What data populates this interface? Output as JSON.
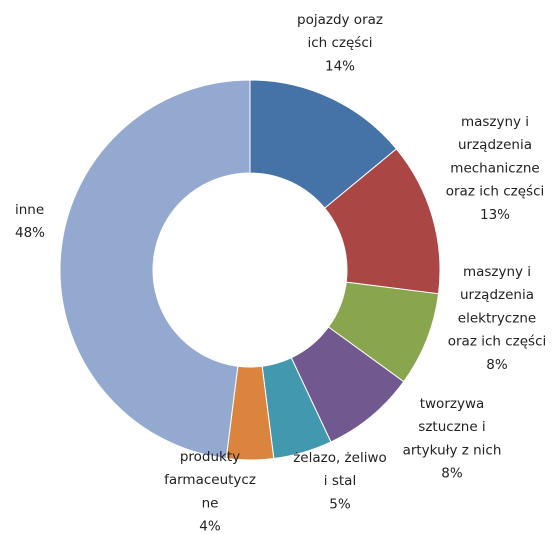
{
  "chart_data": {
    "type": "donut",
    "categories": [
      "pojazdy oraz\nich części",
      "maszyny i\nurządzenia\nmechaniczne\noraz ich części",
      "maszyny i\nurządzenia\nelektryczne\noraz ich części",
      "tworzywa\nsztuczne i\nartykuły z nich",
      "żelazo, żeliwo\ni stal",
      "produkty\nfarmaceutycz\nne",
      "inne"
    ],
    "values": [
      14,
      13,
      8,
      8,
      5,
      4,
      48
    ],
    "value_labels": [
      "14%",
      "13%",
      "8%",
      "8%",
      "5%",
      "4%",
      "48%"
    ],
    "colors": [
      "#4572a7",
      "#aa4643",
      "#89a54e",
      "#71588f",
      "#4198af",
      "#db843d",
      "#93a9cf"
    ]
  }
}
